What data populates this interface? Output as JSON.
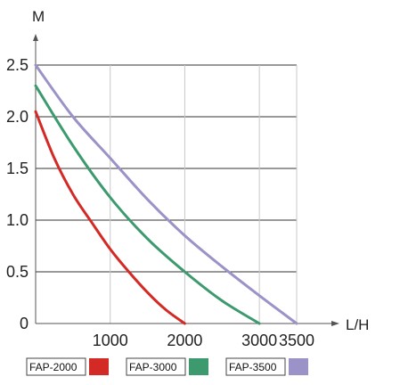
{
  "chart_data": {
    "type": "line",
    "title": "",
    "ylabel": "M",
    "xlabel": "L/H",
    "xlim": [
      0,
      3500
    ],
    "ylim": [
      0,
      2.5
    ],
    "grid": true,
    "legend_position": "bottom-left",
    "y_ticks": [
      "0",
      "0.5",
      "1.0",
      "1.5",
      "2.0",
      "2.5"
    ],
    "x_ticks": [
      {
        "label": "1000",
        "value": 1000,
        "color": "#222222"
      },
      {
        "label": "2000",
        "value": 2000,
        "color": "#d42a25"
      },
      {
        "label": "3000",
        "value": 3000,
        "color": "#3d9a6e"
      },
      {
        "label": "3500",
        "value": 3500,
        "color": "#9b92c8"
      }
    ],
    "series": [
      {
        "name": "FAP-2000",
        "color": "#d42a25",
        "x": [
          0,
          250,
          500,
          750,
          1000,
          1250,
          1500,
          1750,
          2000
        ],
        "y": [
          2.05,
          1.6,
          1.25,
          0.98,
          0.72,
          0.5,
          0.3,
          0.13,
          0.0
        ]
      },
      {
        "name": "FAP-3000",
        "color": "#3d9a6e",
        "x": [
          0,
          500,
          1000,
          1500,
          2000,
          2500,
          3000
        ],
        "y": [
          2.3,
          1.72,
          1.22,
          0.82,
          0.5,
          0.22,
          0.0
        ]
      },
      {
        "name": "FAP-3500",
        "color": "#9b92c8",
        "x": [
          0,
          500,
          1000,
          1500,
          2000,
          2500,
          3000,
          3500
        ],
        "y": [
          2.5,
          2.0,
          1.6,
          1.2,
          0.85,
          0.55,
          0.27,
          0.0
        ]
      }
    ]
  }
}
